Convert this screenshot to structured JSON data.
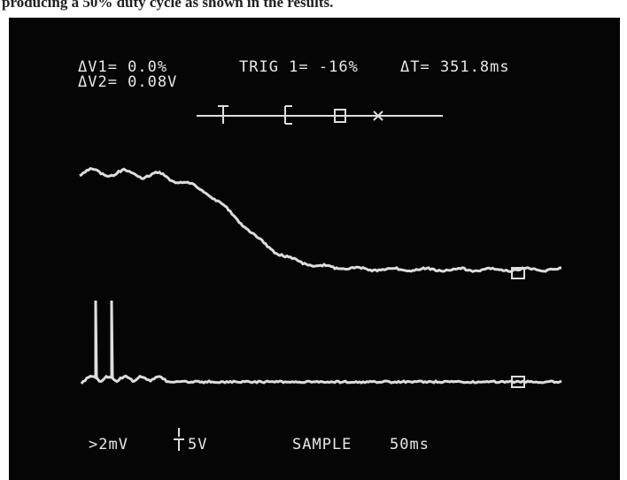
{
  "caption": "producing a 50% duty cycle as shown in the results.",
  "readouts": {
    "dv1": "ΔV1= 0.0%",
    "dv2": "ΔV2= 0.08V",
    "trig": "TRIG 1= -16%",
    "dt": "ΔT= 351.8ms"
  },
  "bottom": {
    "sensitivity": ">2mV",
    "volts": "5V",
    "mode": "SAMPLE",
    "timebase": "50ms"
  }
}
